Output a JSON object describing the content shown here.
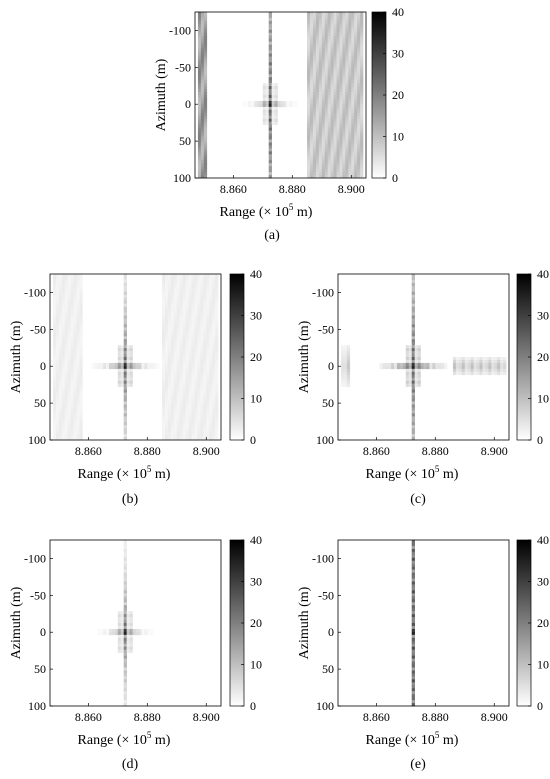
{
  "colors": {
    "background": "#ffffff",
    "axis": "#000000",
    "colorbar_low": "#ffffff",
    "colorbar_high": "#000000"
  },
  "chart_data": [
    {
      "type": "heatmap",
      "panel_label": "(a)",
      "xlabel": "Range (× 10^5 m)",
      "ylabel": "Azimuth (m)",
      "x_ticks": [
        8.86,
        8.88,
        8.9
      ],
      "x_tick_labels": [
        "8.860",
        "8.880",
        "8.900"
      ],
      "y_ticks": [
        -100,
        -50,
        0,
        50,
        100
      ],
      "y_tick_labels": [
        "-100",
        "-50",
        "0",
        "50",
        "100"
      ],
      "xlim": [
        8.847,
        8.905
      ],
      "ylim": [
        -125,
        100
      ],
      "y_reversed": true,
      "colorbar": {
        "ticks": [
          0,
          10,
          20,
          30,
          40
        ],
        "tick_labels": [
          "0",
          "10",
          "20",
          "30",
          "40"
        ],
        "range": [
          0,
          40
        ]
      },
      "target": {
        "range": 8.8725,
        "azimuth": 0,
        "peak": 40
      },
      "sidelobes": {
        "range_decay": 0.5,
        "azimuth_decay": 0.1,
        "range_spacing": 0.0017,
        "azimuth_spacing": 11
      },
      "stripes": [
        {
          "range_from": 8.848,
          "range_to": 8.851,
          "level": 20
        },
        {
          "range_from": 8.885,
          "range_to": 8.904,
          "level": 11
        }
      ],
      "blobs": []
    },
    {
      "type": "heatmap",
      "panel_label": "(b)",
      "xlabel": "Range (× 10^5 m)",
      "ylabel": "Azimuth (m)",
      "x_ticks": [
        8.86,
        8.88,
        8.9
      ],
      "x_tick_labels": [
        "8.860",
        "8.880",
        "8.900"
      ],
      "y_ticks": [
        -100,
        -50,
        0,
        50,
        100
      ],
      "y_tick_labels": [
        "-100",
        "-50",
        "0",
        "50",
        "100"
      ],
      "xlim": [
        8.847,
        8.905
      ],
      "ylim": [
        -125,
        100
      ],
      "y_reversed": true,
      "colorbar": {
        "ticks": [
          0,
          10,
          20,
          30,
          40
        ],
        "tick_labels": [
          "0",
          "10",
          "20",
          "30",
          "40"
        ],
        "range": [
          0,
          40
        ]
      },
      "target": {
        "range": 8.8725,
        "azimuth": 0,
        "peak": 40
      },
      "sidelobes": {
        "range_decay": 0.62,
        "azimuth_decay": 0.28,
        "range_spacing": 0.0017,
        "azimuth_spacing": 11
      },
      "stripes": [
        {
          "range_from": 8.848,
          "range_to": 8.858,
          "level": 3
        },
        {
          "range_from": 8.885,
          "range_to": 8.904,
          "level": 3
        }
      ],
      "blobs": []
    },
    {
      "type": "heatmap",
      "panel_label": "(c)",
      "xlabel": "Range (× 10^5 m)",
      "ylabel": "Azimuth (m)",
      "x_ticks": [
        8.86,
        8.88,
        8.9
      ],
      "x_tick_labels": [
        "8.860",
        "8.880",
        "8.900"
      ],
      "y_ticks": [
        -100,
        -50,
        0,
        50,
        100
      ],
      "y_tick_labels": [
        "-100",
        "-50",
        "0",
        "50",
        "100"
      ],
      "xlim": [
        8.847,
        8.905
      ],
      "ylim": [
        -125,
        100
      ],
      "y_reversed": true,
      "colorbar": {
        "ticks": [
          0,
          10,
          20,
          30,
          40
        ],
        "tick_labels": [
          "0",
          "10",
          "20",
          "30",
          "40"
        ],
        "range": [
          0,
          40
        ]
      },
      "target": {
        "range": 8.8725,
        "azimuth": 0,
        "peak": 40
      },
      "sidelobes": {
        "range_decay": 0.72,
        "azimuth_decay": 0.15,
        "range_spacing": 0.0017,
        "azimuth_spacing": 11
      },
      "stripes": [],
      "blobs": [
        {
          "range_from": 8.848,
          "range_to": 8.851,
          "azimuth": 0,
          "half_height": 28,
          "level": 9
        },
        {
          "range_from": 8.886,
          "range_to": 8.904,
          "azimuth": 0,
          "half_height": 12,
          "level": 11
        }
      ]
    },
    {
      "type": "heatmap",
      "panel_label": "(d)",
      "xlabel": "Range (× 10^5 m)",
      "ylabel": "Azimuth (m)",
      "x_ticks": [
        8.86,
        8.88,
        8.9
      ],
      "x_tick_labels": [
        "8.860",
        "8.880",
        "8.900"
      ],
      "y_ticks": [
        -100,
        -50,
        0,
        50,
        100
      ],
      "y_tick_labels": [
        "-100",
        "-50",
        "0",
        "50",
        "100"
      ],
      "xlim": [
        8.847,
        8.905
      ],
      "ylim": [
        -125,
        100
      ],
      "y_reversed": true,
      "colorbar": {
        "ticks": [
          0,
          10,
          20,
          30,
          40
        ],
        "tick_labels": [
          "0",
          "10",
          "20",
          "30",
          "40"
        ],
        "range": [
          0,
          40
        ]
      },
      "target": {
        "range": 8.8725,
        "azimuth": 0,
        "peak": 40
      },
      "sidelobes": {
        "range_decay": 0.52,
        "azimuth_decay": 0.35,
        "range_spacing": 0.0017,
        "azimuth_spacing": 11
      },
      "stripes": [],
      "blobs": []
    },
    {
      "type": "heatmap",
      "panel_label": "(e)",
      "xlabel": "Range (× 10^5 m)",
      "ylabel": "Azimuth (m)",
      "x_ticks": [
        8.86,
        8.88,
        8.9
      ],
      "x_tick_labels": [
        "8.860",
        "8.880",
        "8.900"
      ],
      "y_ticks": [
        -100,
        -50,
        0,
        50,
        100
      ],
      "y_tick_labels": [
        "-100",
        "-50",
        "0",
        "50",
        "100"
      ],
      "xlim": [
        8.847,
        8.905
      ],
      "ylim": [
        -125,
        100
      ],
      "y_reversed": true,
      "colorbar": {
        "ticks": [
          0,
          10,
          20,
          30,
          40
        ],
        "tick_labels": [
          "0",
          "10",
          "20",
          "30",
          "40"
        ],
        "range": [
          0,
          40
        ]
      },
      "target": {
        "range": 8.8725,
        "azimuth": 0,
        "peak": 40
      },
      "sidelobes": {
        "range_decay": 0.01,
        "azimuth_decay": 0.01,
        "range_spacing": 0.0017,
        "azimuth_spacing": 11
      },
      "stripes": [],
      "blobs": []
    }
  ]
}
